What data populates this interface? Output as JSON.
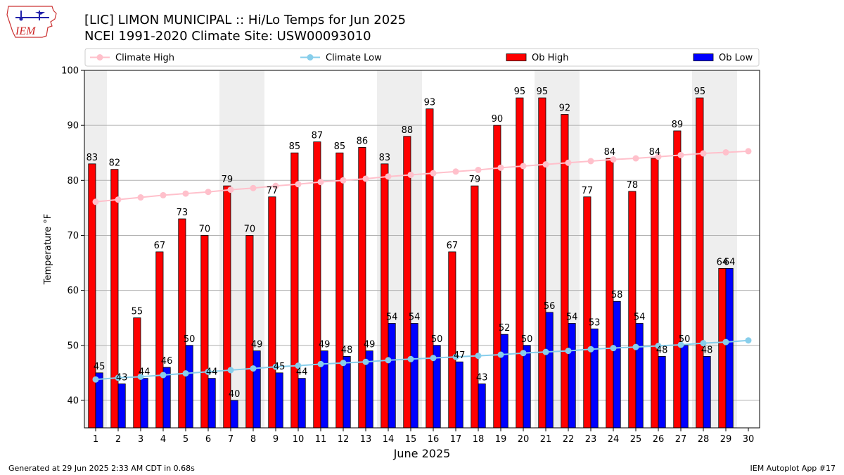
{
  "header": {
    "title_line1": "[LIC] LIMON MUNICIPAL :: Hi/Lo Temps for Jun 2025",
    "title_line2": "NCEI 1991-2020 Climate Site: USW00093010",
    "logo_text": "IEM"
  },
  "footer": {
    "generated": "Generated at 29 Jun 2025 2:33 AM CDT in 0.68s",
    "app": "IEM Autoplot App #17"
  },
  "colors": {
    "ob_high": "#ff0000",
    "ob_low": "#0000ff",
    "climate_high": "#ffc0cb",
    "climate_low": "#87ceeb",
    "weekend_shade": "#eeeeee",
    "grid": "#b0b0b0"
  },
  "chart_data": {
    "type": "bar",
    "xlabel": "June 2025",
    "ylabel": "Temperature °F",
    "ylim": [
      35,
      100
    ],
    "yticks": [
      40,
      50,
      60,
      70,
      80,
      90,
      100
    ],
    "xlim": [
      0.5,
      30.5
    ],
    "grid": "y-major",
    "legend_position": "top",
    "days": [
      1,
      2,
      3,
      4,
      5,
      6,
      7,
      8,
      9,
      10,
      11,
      12,
      13,
      14,
      15,
      16,
      17,
      18,
      19,
      20,
      21,
      22,
      23,
      24,
      25,
      26,
      27,
      28,
      29,
      30
    ],
    "weekend_shading_days": [
      [
        1,
        1
      ],
      [
        7,
        8
      ],
      [
        14,
        15
      ],
      [
        21,
        22
      ],
      [
        28,
        29
      ]
    ],
    "series": [
      {
        "name": "Ob High",
        "kind": "bar",
        "values": [
          83,
          82,
          55,
          67,
          73,
          70,
          79,
          70,
          77,
          85,
          87,
          85,
          86,
          83,
          88,
          93,
          67,
          79,
          90,
          95,
          95,
          92,
          77,
          84,
          78,
          84,
          89,
          95,
          64
        ]
      },
      {
        "name": "Ob Low",
        "kind": "bar",
        "values": [
          45,
          43,
          44,
          46,
          50,
          44,
          40,
          49,
          45,
          44,
          49,
          48,
          49,
          54,
          54,
          50,
          47,
          43,
          52,
          50,
          56,
          54,
          53,
          58,
          54,
          48,
          50,
          48,
          64
        ]
      },
      {
        "name": "Climate High",
        "kind": "line",
        "values": [
          76.1,
          76.5,
          76.9,
          77.3,
          77.6,
          77.9,
          78.3,
          78.6,
          79.0,
          79.3,
          79.7,
          80.0,
          80.3,
          80.7,
          81.0,
          81.3,
          81.6,
          81.9,
          82.3,
          82.6,
          82.9,
          83.2,
          83.5,
          83.8,
          84.0,
          84.3,
          84.6,
          84.9,
          85.1,
          85.3
        ]
      },
      {
        "name": "Climate Low",
        "kind": "line",
        "values": [
          43.8,
          44.1,
          44.3,
          44.6,
          44.9,
          45.2,
          45.5,
          45.8,
          46.1,
          46.3,
          46.6,
          46.8,
          47.0,
          47.3,
          47.5,
          47.7,
          47.9,
          48.1,
          48.3,
          48.6,
          48.8,
          49.0,
          49.3,
          49.5,
          49.7,
          49.9,
          50.1,
          50.4,
          50.6,
          50.9
        ]
      }
    ]
  }
}
